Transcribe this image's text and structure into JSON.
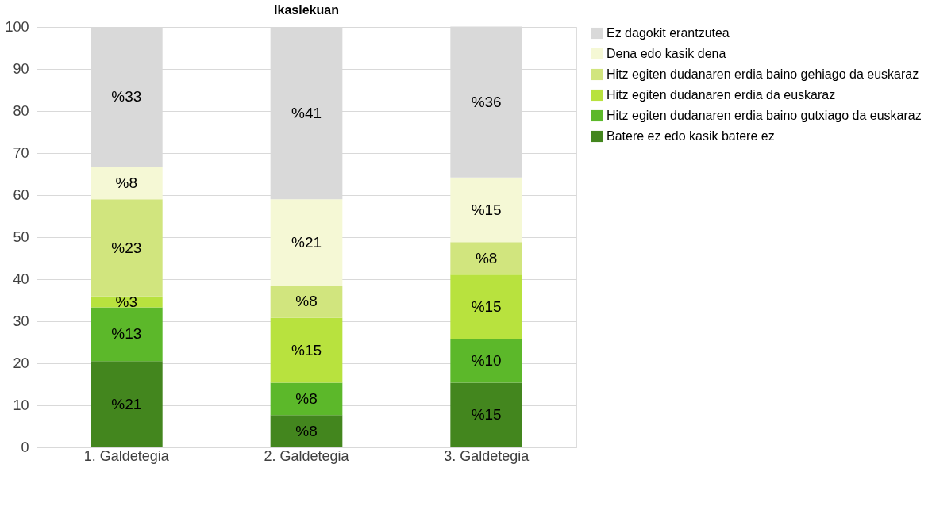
{
  "chart_data": {
    "type": "bar",
    "title": "Ikaslekuan",
    "categories": [
      "1. Galdetegia",
      "2. Galdetegia",
      "3. Galdetegia"
    ],
    "stacked": true,
    "ylim": [
      0,
      100
    ],
    "yticks": [
      0,
      10,
      20,
      30,
      40,
      50,
      60,
      70,
      80,
      90,
      100
    ],
    "grid": "y",
    "legend": "right",
    "series": [
      {
        "name": "Batere ez edo kasik batere ez",
        "color": "#43861e",
        "values": [
          20.5,
          7.7,
          15.4
        ],
        "value_labels": [
          "%21",
          "%8",
          "%15"
        ]
      },
      {
        "name": "Hitz egiten dudanaren erdia baino gutxiago da euskaraz",
        "color": "#5cb82a",
        "values": [
          12.8,
          7.7,
          10.3
        ],
        "value_labels": [
          "%13",
          "%8",
          "%10"
        ]
      },
      {
        "name": "Hitz egiten dudanaren erdia da euskaraz",
        "color": "#b8e23e",
        "values": [
          2.6,
          15.4,
          15.4
        ],
        "value_labels": [
          "%3",
          "%15",
          "%15"
        ]
      },
      {
        "name": "Hitz egiten dudanaren erdia baino gehiago da euskaraz",
        "color": "#d1e57e",
        "values": [
          23.1,
          7.7,
          7.7
        ],
        "value_labels": [
          "%23",
          "%8",
          "%8"
        ]
      },
      {
        "name": "Dena edo kasik dena",
        "color": "#f5f8d5",
        "values": [
          7.7,
          20.5,
          15.4
        ],
        "value_labels": [
          "%8",
          "%21",
          "%15"
        ]
      },
      {
        "name": "Ez dagokit erantzutea",
        "color": "#d9d9d9",
        "values": [
          33.3,
          41.0,
          35.9
        ],
        "value_labels": [
          "%33",
          "%41",
          "%36"
        ]
      }
    ]
  }
}
